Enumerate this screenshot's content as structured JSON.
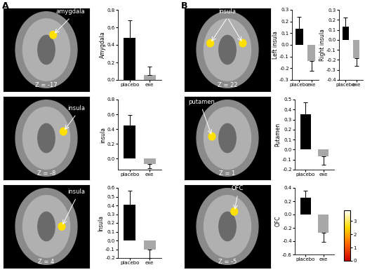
{
  "panels": [
    {
      "label": "A",
      "slices": [
        {
          "z": "Z = -17",
          "region": "amygdala"
        },
        {
          "z": "Z = -8",
          "region": "insula"
        },
        {
          "z": "Z = 4",
          "region": "insula"
        }
      ]
    },
    {
      "label": "B",
      "slices": [
        {
          "z": "Z = 22",
          "region": "insula"
        },
        {
          "z": "Z = 1",
          "region": "putamen"
        },
        {
          "z": "Z = -5",
          "region": "OFC"
        }
      ]
    }
  ],
  "colorbar": {
    "lim": [
      0,
      3.8
    ],
    "ticks": [
      0,
      1,
      2,
      3
    ]
  },
  "chart_data": [
    {
      "type": "bar",
      "ylabel": "Amygdala",
      "categories": [
        "placebo",
        "exe"
      ],
      "values": [
        0.48,
        0.06
      ],
      "errors": [
        0.2,
        0.09
      ],
      "colors": [
        "#000000",
        "#a8a8a8"
      ],
      "ylim": [
        0.0,
        0.8
      ],
      "yticks": [
        0.0,
        0.2,
        0.4,
        0.6,
        0.8
      ]
    },
    {
      "type": "bar",
      "ylabel": "insula",
      "categories": [
        "placebo",
        "exe"
      ],
      "values": [
        0.45,
        -0.07
      ],
      "errors": [
        0.14,
        0.06
      ],
      "colors": [
        "#000000",
        "#a8a8a8"
      ],
      "ylim": [
        -0.15,
        0.8
      ],
      "yticks": [
        0.0,
        0.2,
        0.4,
        0.6,
        0.8
      ]
    },
    {
      "type": "bar",
      "ylabel": "Insula",
      "categories": [
        "placebo",
        "exe"
      ],
      "values": [
        0.41,
        -0.1
      ],
      "errors": [
        0.16,
        0.1
      ],
      "colors": [
        "#000000",
        "#a8a8a8"
      ],
      "ylim": [
        -0.2,
        0.6
      ],
      "yticks": [
        -0.2,
        -0.1,
        0.0,
        0.1,
        0.2,
        0.3,
        0.4,
        0.5,
        0.6
      ]
    },
    {
      "type": "bar",
      "ylabel": "Left insula",
      "categories": [
        "placebo",
        "exe"
      ],
      "values": [
        0.14,
        -0.14
      ],
      "errors": [
        0.1,
        0.08
      ],
      "colors": [
        "#000000",
        "#a8a8a8"
      ],
      "ylim": [
        -0.3,
        0.3
      ],
      "yticks": [
        -0.3,
        -0.2,
        -0.1,
        0.0,
        0.1,
        0.2,
        0.3
      ]
    },
    {
      "type": "bar",
      "ylabel": "Right insula",
      "categories": [
        "placebo",
        "exe"
      ],
      "values": [
        0.13,
        -0.18
      ],
      "errors": [
        0.09,
        0.08
      ],
      "colors": [
        "#000000",
        "#a8a8a8"
      ],
      "ylim": [
        -0.4,
        0.3
      ],
      "yticks": [
        -0.4,
        -0.3,
        -0.2,
        -0.1,
        0.0,
        0.1,
        0.2,
        0.3
      ]
    },
    {
      "type": "bar",
      "ylabel": "Putamen",
      "categories": [
        "placebo",
        "exe"
      ],
      "values": [
        0.35,
        -0.07
      ],
      "errors": [
        0.12,
        0.08
      ],
      "colors": [
        "#000000",
        "#a8a8a8"
      ],
      "ylim": [
        -0.2,
        0.5
      ],
      "yticks": [
        -0.2,
        -0.1,
        0.0,
        0.1,
        0.2,
        0.3,
        0.4,
        0.5
      ]
    },
    {
      "type": "bar",
      "ylabel": "OFC",
      "categories": [
        "placebo",
        "exe"
      ],
      "values": [
        0.25,
        -0.27
      ],
      "errors": [
        0.11,
        0.14
      ],
      "colors": [
        "#000000",
        "#a8a8a8"
      ],
      "ylim": [
        -0.6,
        0.4
      ],
      "yticks": [
        -0.6,
        -0.4,
        -0.2,
        0.0,
        0.2,
        0.4
      ]
    }
  ]
}
